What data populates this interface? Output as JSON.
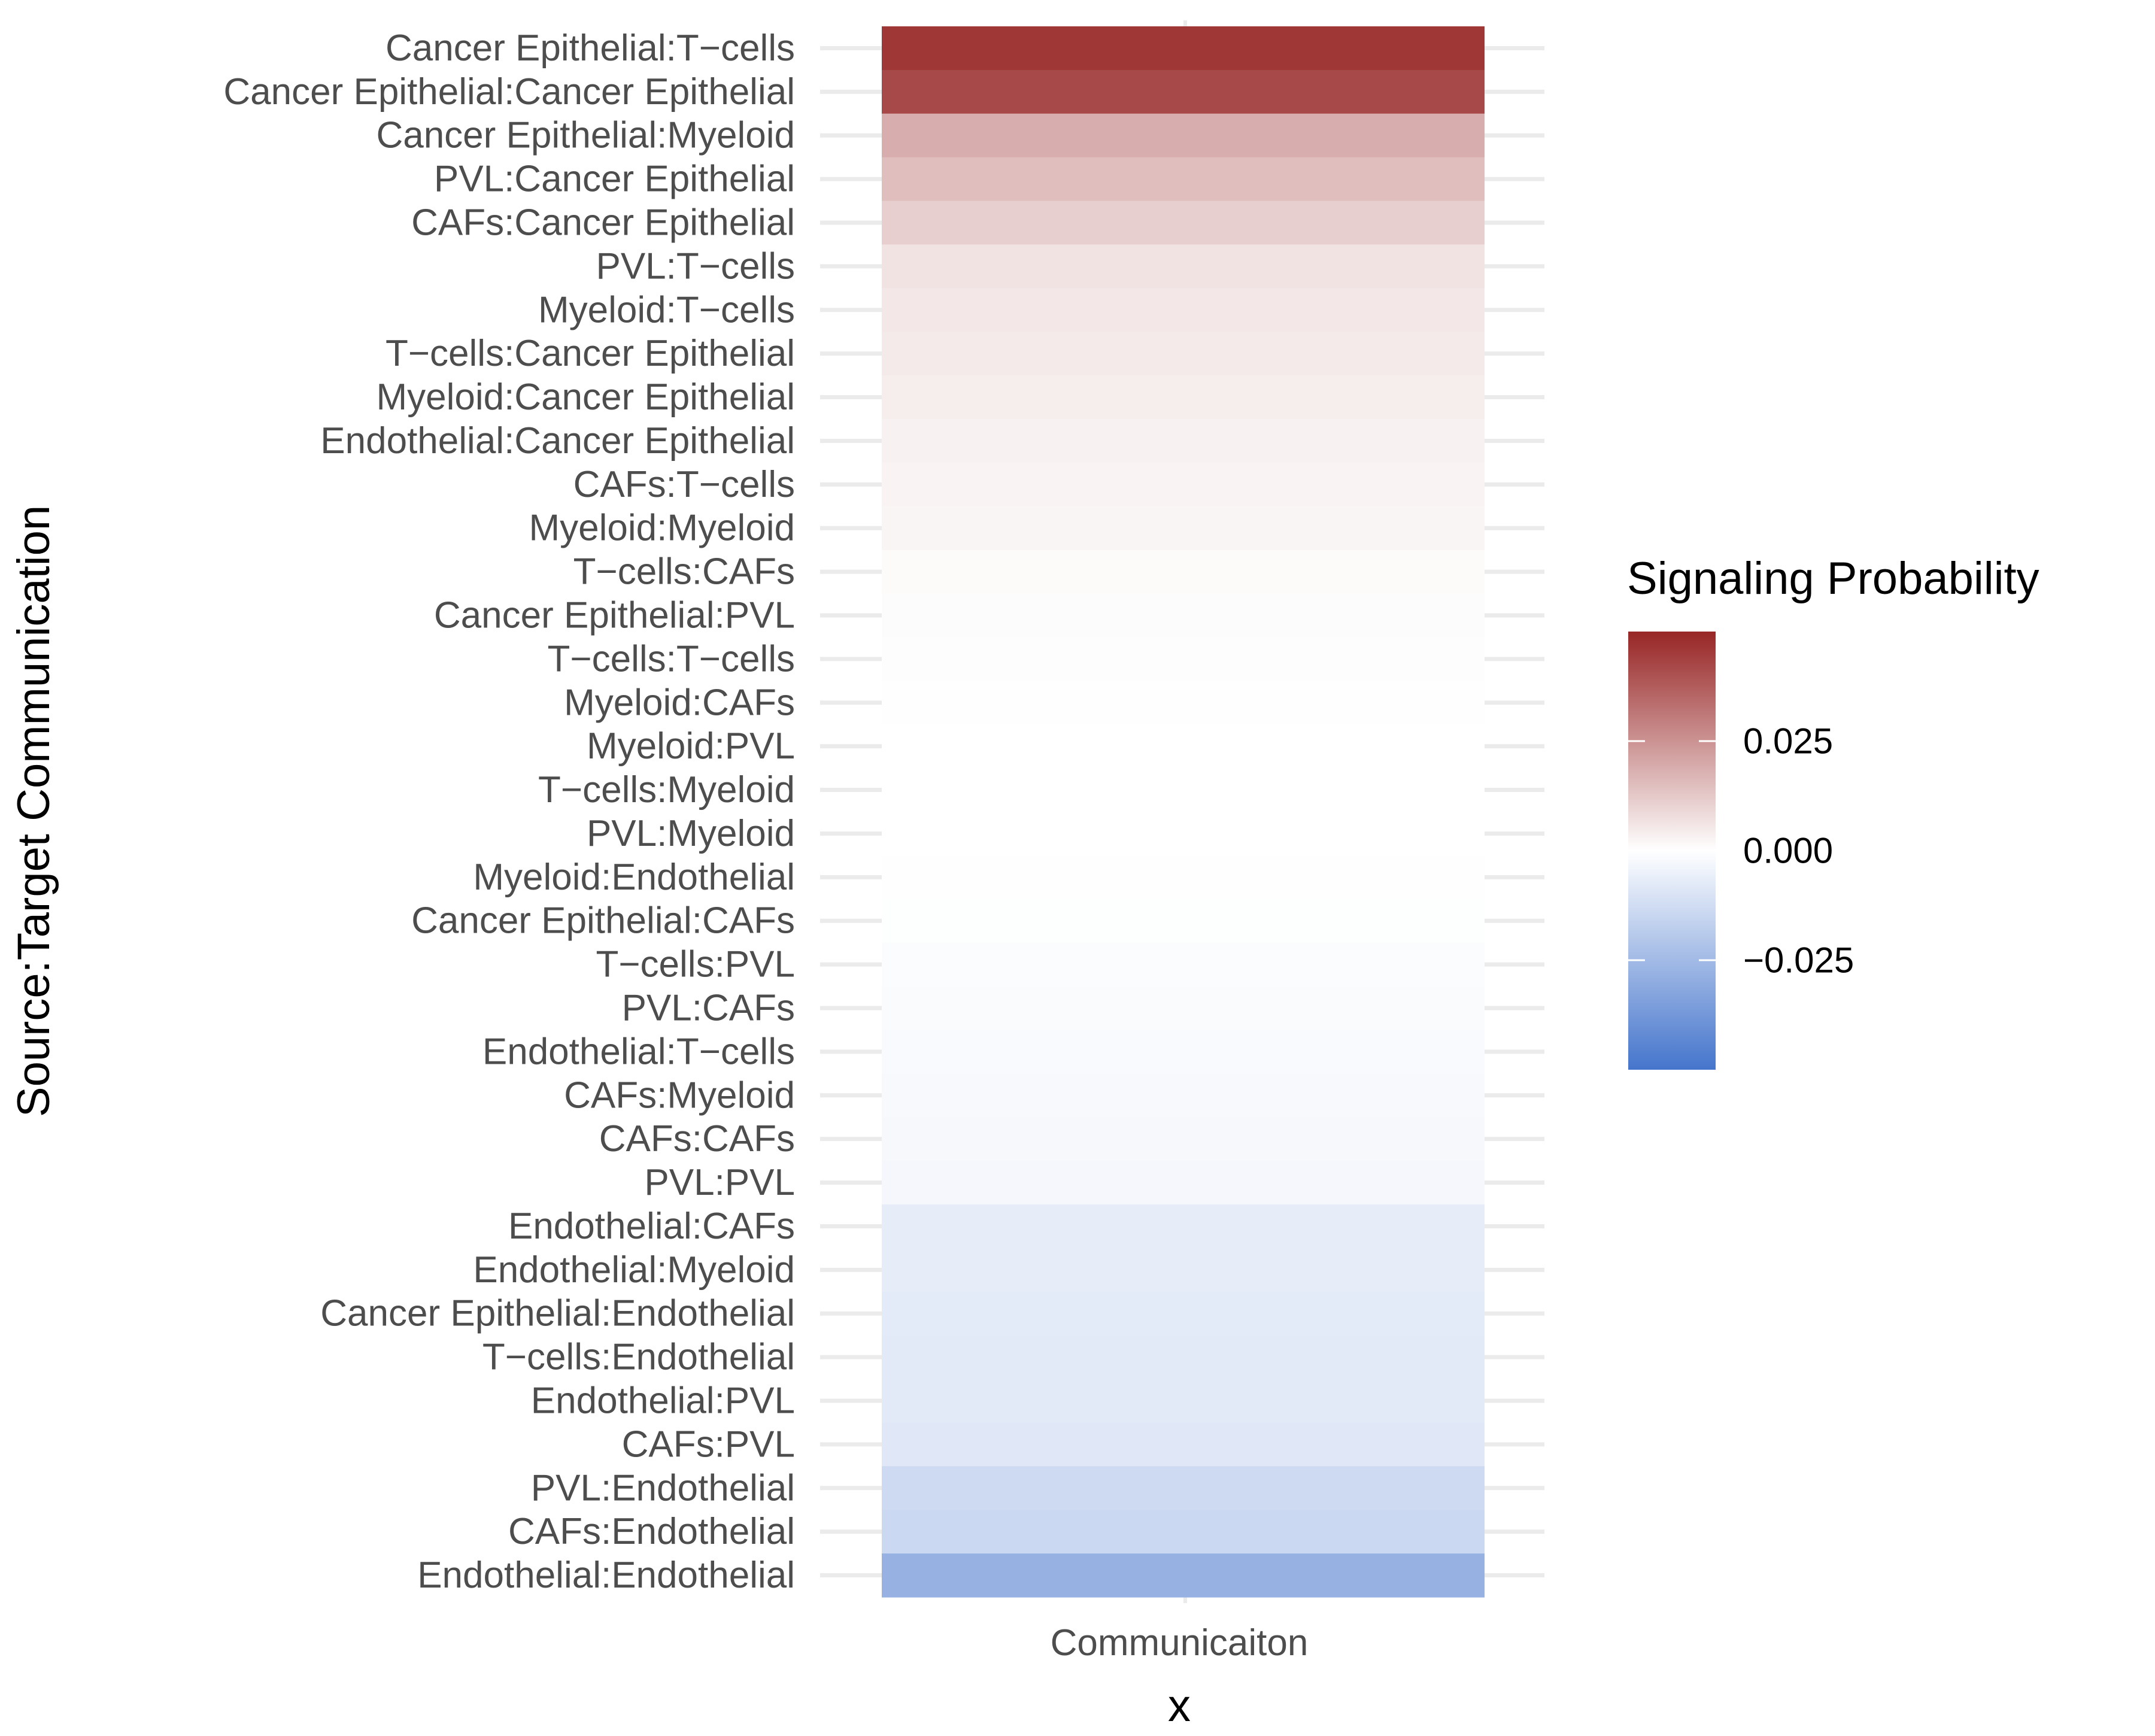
{
  "chart_data": {
    "type": "heatmap",
    "xlabel": "x",
    "ylabel": "Source:Target Communication",
    "x_categories": [
      "Communicaiton"
    ],
    "y_categories": [
      "Cancer Epithelial:T−cells",
      "Cancer Epithelial:Cancer Epithelial",
      "Cancer Epithelial:Myeloid",
      "PVL:Cancer Epithelial",
      "CAFs:Cancer Epithelial",
      "PVL:T−cells",
      "Myeloid:T−cells",
      "T−cells:Cancer Epithelial",
      "Myeloid:Cancer Epithelial",
      "Endothelial:Cancer Epithelial",
      "CAFs:T−cells",
      "Myeloid:Myeloid",
      "T−cells:CAFs",
      "Cancer Epithelial:PVL",
      "T−cells:T−cells",
      "Myeloid:CAFs",
      "Myeloid:PVL",
      "T−cells:Myeloid",
      "PVL:Myeloid",
      "Myeloid:Endothelial",
      "Cancer Epithelial:CAFs",
      "T−cells:PVL",
      "PVL:CAFs",
      "Endothelial:T−cells",
      "CAFs:Myeloid",
      "CAFs:CAFs",
      "PVL:PVL",
      "Endothelial:CAFs",
      "Endothelial:Myeloid",
      "Cancer Epithelial:Endothelial",
      "T−cells:Endothelial",
      "Endothelial:PVL",
      "CAFs:PVL",
      "PVL:Endothelial",
      "CAFs:Endothelial",
      "Endothelial:Endothelial"
    ],
    "values": [
      0.046,
      0.042,
      0.019,
      0.015,
      0.011,
      0.0065,
      0.0055,
      0.0048,
      0.0042,
      0.0032,
      0.0027,
      0.0022,
      0.0012,
      0.0008,
      0.0004,
      0.0002,
      0.0001,
      0.0,
      -0.0001,
      -0.0003,
      -0.0005,
      -0.0012,
      -0.0015,
      -0.0018,
      -0.0022,
      -0.0025,
      -0.0028,
      -0.0065,
      -0.0068,
      -0.0072,
      -0.0075,
      -0.0078,
      -0.0082,
      -0.0135,
      -0.014,
      -0.028
    ],
    "color_scale": {
      "limits": [
        -0.05,
        0.05
      ],
      "low": "#4575cc",
      "mid": "#ffffff",
      "high": "#982626"
    },
    "legend": {
      "title": "Signaling Probability",
      "breaks": [
        0.025,
        0.0,
        -0.025
      ],
      "labels": [
        "0.025",
        "0.000",
        "−0.025"
      ],
      "position": "right"
    },
    "grid": true
  }
}
